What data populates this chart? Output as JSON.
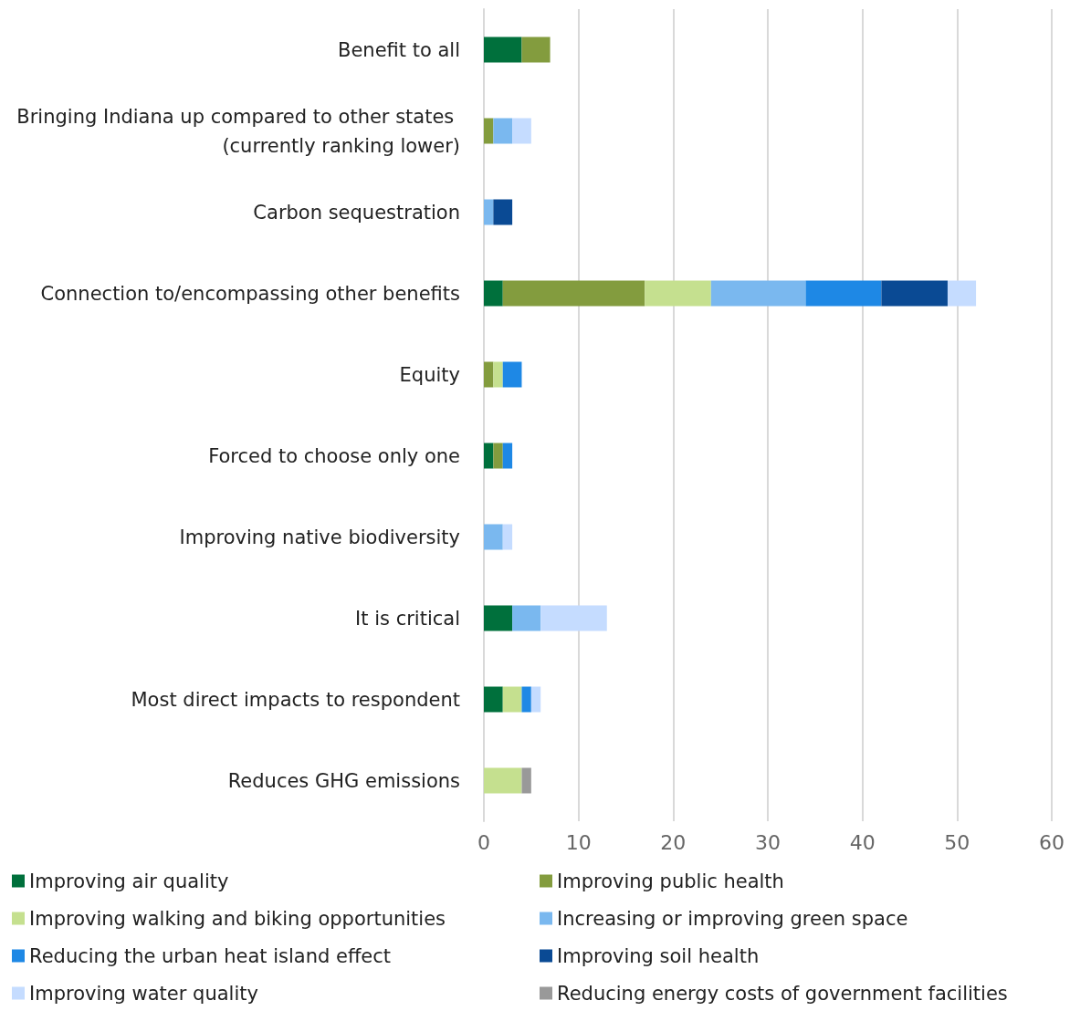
{
  "chart_data": {
    "type": "bar",
    "orientation": "horizontal",
    "stacked": true,
    "categories": [
      "Benefit to all",
      "Bringing Indiana up compared to other states (currently ranking lower)",
      "Carbon sequestration",
      "Connection to/encompassing other benefits",
      "Equity",
      "Forced to choose only one",
      "Improving native biodiversity",
      "It is critical",
      "Most direct impacts to respondent",
      "Reduces GHG emissions"
    ],
    "series": [
      {
        "name": "Improving air quality",
        "color": "#00703c",
        "values": [
          4,
          null,
          null,
          2,
          null,
          1,
          null,
          3,
          2,
          null
        ]
      },
      {
        "name": "Improving public health",
        "color": "#839c3e",
        "values": [
          3,
          1,
          null,
          15,
          1,
          1,
          null,
          null,
          null,
          null
        ]
      },
      {
        "name": "Improving walking and biking opportunities",
        "color": "#c5e08f",
        "values": [
          null,
          null,
          null,
          7,
          1,
          null,
          null,
          null,
          2,
          4
        ]
      },
      {
        "name": "Increasing or improving green space",
        "color": "#7ab8ef",
        "values": [
          null,
          2,
          1,
          10,
          null,
          null,
          2,
          3,
          null,
          null
        ]
      },
      {
        "name": "Reducing the urban heat island effect",
        "color": "#1e88e5",
        "values": [
          null,
          null,
          null,
          8,
          2,
          1,
          null,
          null,
          1,
          null
        ]
      },
      {
        "name": "Improving soil health",
        "color": "#0a4a94",
        "values": [
          null,
          null,
          2,
          7,
          null,
          null,
          null,
          null,
          null,
          null
        ]
      },
      {
        "name": "Improving water quality",
        "color": "#c5dcff",
        "values": [
          null,
          2,
          null,
          3,
          null,
          null,
          1,
          7,
          1,
          null
        ]
      },
      {
        "name": "Reducing energy costs of government facilities",
        "color": "#999999",
        "values": [
          null,
          null,
          null,
          null,
          null,
          null,
          null,
          null,
          null,
          1
        ]
      }
    ],
    "xlim": [
      0,
      60
    ],
    "xticks": [
      0,
      10,
      20,
      30,
      40,
      50,
      60
    ],
    "grid": "x",
    "legend": "bottom"
  }
}
